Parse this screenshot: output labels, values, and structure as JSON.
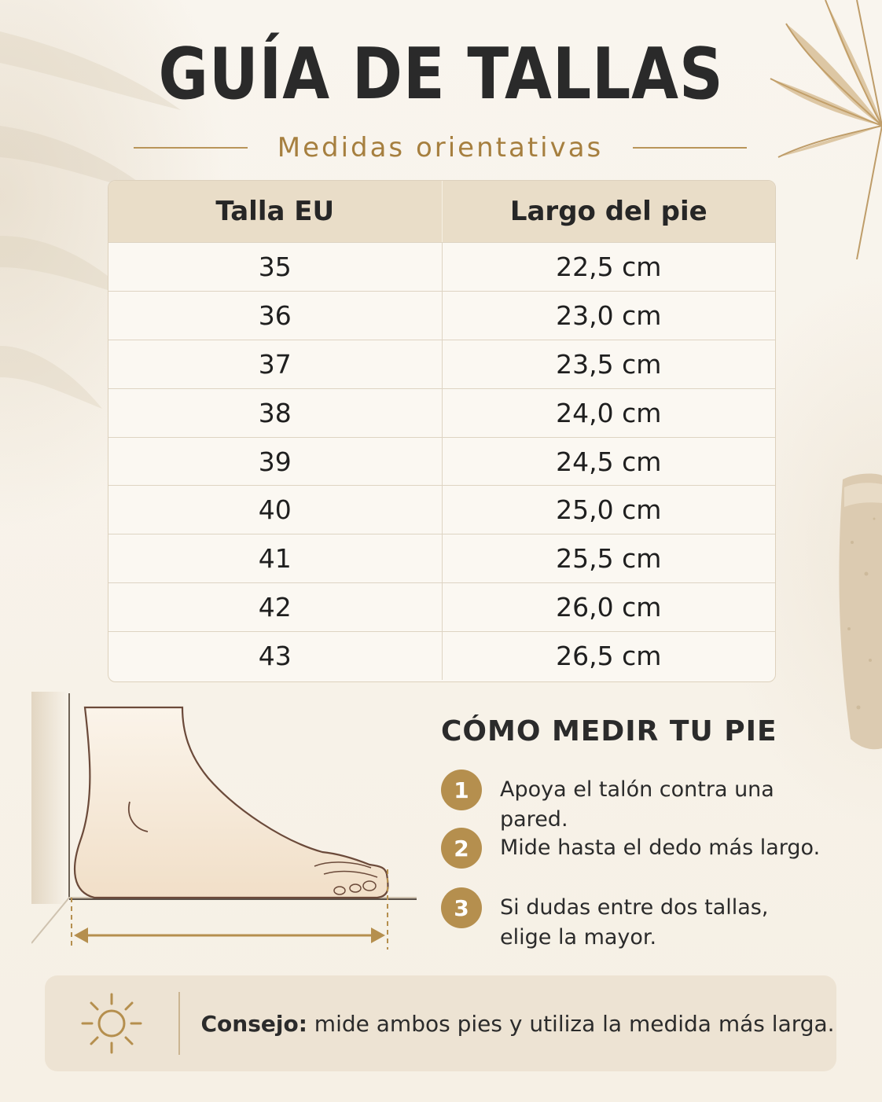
{
  "header": {
    "title": "GUÍA DE TALLAS",
    "subtitle": "Medidas orientativas"
  },
  "table": {
    "columns": [
      "Talla EU",
      "Largo del pie"
    ],
    "rows": [
      [
        "35",
        "22,5 cm"
      ],
      [
        "36",
        "23,0 cm"
      ],
      [
        "37",
        "23,5 cm"
      ],
      [
        "38",
        "24,0 cm"
      ],
      [
        "39",
        "24,5 cm"
      ],
      [
        "40",
        "25,0 cm"
      ],
      [
        "41",
        "25,5 cm"
      ],
      [
        "42",
        "26,0 cm"
      ],
      [
        "43",
        "26,5 cm"
      ]
    ]
  },
  "howto": {
    "title": "CÓMO MEDIR TU PIE",
    "steps": [
      {
        "num": "1",
        "text": "Apoya el talón contra una pared."
      },
      {
        "num": "2",
        "text": "Mide hasta el dedo más largo."
      },
      {
        "num": "3",
        "text": "Si dudas entre dos tallas, elige la mayor."
      }
    ]
  },
  "tip": {
    "label": "Consejo:",
    "text": " mide ambos pies y utiliza la medida más larga.",
    "icon": "sun-icon"
  },
  "colors": {
    "accent": "#b58f4e",
    "header_bg": "#e9ddc8",
    "background": "#f8f3ea",
    "tip_bg": "#ede3d3"
  }
}
